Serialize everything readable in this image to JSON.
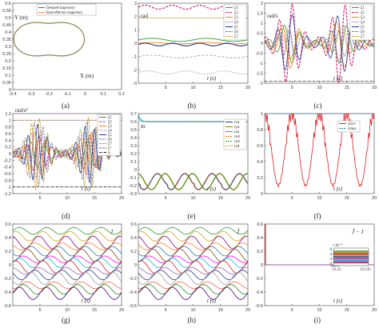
{
  "panels": [
    {
      "id": "a",
      "caption": "(a)",
      "type": "line",
      "xticks": [
        "-0.4",
        "-0.3",
        "-0.2",
        "-0.1",
        "0",
        "0.1",
        "0.2"
      ],
      "yticks": [
        "0.6",
        "0.55",
        "0.5",
        "0.45",
        "0.4",
        "0.35",
        "0.3",
        "0.25",
        "0.2",
        "0.15",
        "0.1",
        "0.05",
        "0"
      ],
      "xlabel": "X (m)",
      "ylabel": "Y (m)",
      "legend": [
        "Desired trajectory",
        "End-effector trajectory"
      ],
      "colors": [
        "#2e8b57",
        "#f08a4b"
      ]
    },
    {
      "id": "b",
      "caption": "(b)",
      "unit": "rad",
      "xlabel": "t (s)",
      "xticks": [
        "5",
        "10",
        "15",
        "20"
      ],
      "yticks": [
        "3",
        "2",
        "1",
        "0",
        "-1",
        "-2",
        "-3"
      ],
      "legend": [
        "ξ1",
        "ξ2",
        "ξ3",
        "ξ4",
        "ξ5",
        "ξ6",
        "ξ7"
      ]
    },
    {
      "id": "c",
      "caption": "(c)",
      "unit": "rad/s",
      "xlabel": "t (s)",
      "xticks": [
        "5",
        "10",
        "15",
        "20"
      ],
      "yticks": [
        "2",
        "1.5",
        "1",
        "0.5",
        "0",
        "-0.5",
        "-1",
        "-1.5",
        "-2"
      ],
      "legend": [
        "ξ1",
        "ξ2",
        "ξ3",
        "ξ4",
        "ξ5",
        "ξ6",
        "ξ7"
      ]
    },
    {
      "id": "d",
      "caption": "(d)",
      "unit": "rad/s²",
      "xlabel": "t (s)",
      "xticks": [
        "5",
        "10",
        "15",
        "20"
      ],
      "yticks": [
        "1.2",
        "1",
        "0.8",
        "0.6",
        "0.4",
        "0.2",
        "0",
        "-0.2",
        "-0.4",
        "-0.6",
        "-0.8",
        "-1",
        "-1.2"
      ],
      "legend": [
        "ξ1",
        "ξ2",
        "ξ3",
        "ξ4",
        "ξ5",
        "ξ6",
        "ξ7",
        "ξ+",
        "ξ-"
      ]
    },
    {
      "id": "e",
      "caption": "(e)",
      "unit": "m",
      "xlabel": "t (s)",
      "xticks": [
        "5",
        "10",
        "15",
        "20"
      ],
      "yticks": [
        "0.7",
        "0.6",
        "0.5",
        "0.4",
        "0.3",
        "0.2",
        "0.1",
        "0",
        "-0.1",
        "-0.2",
        "-0.3"
      ],
      "legend": [
        "rxa",
        "rya",
        "rza",
        "rxd",
        "ryd",
        "rzd"
      ]
    },
    {
      "id": "f",
      "caption": "(f)",
      "xlabel": "t (s)",
      "xticks": [
        "5",
        "10",
        "15",
        "20"
      ],
      "yticks": [
        "1",
        "0.8",
        "0.6",
        "0.4",
        "0.2",
        "0"
      ],
      "legend": [
        "||ε||∞",
        "εmax"
      ]
    },
    {
      "id": "g",
      "caption": "(g)",
      "xlabel": "t (s)",
      "tag": "J",
      "xticks": [
        "5",
        "10",
        "15",
        "20"
      ],
      "yticks": [
        "0.6",
        "0.4",
        "0.2",
        "0",
        "-0.2",
        "-0.4",
        "-0.6"
      ]
    },
    {
      "id": "h",
      "caption": "(h)",
      "xlabel": "t (s)",
      "tag": "Ĵ",
      "xticks": [
        "5",
        "10",
        "15",
        "20"
      ],
      "yticks": [
        "0.6",
        "0.4",
        "0.2",
        "0",
        "-0.2",
        "-0.4",
        "-0.6"
      ]
    },
    {
      "id": "i",
      "caption": "(i)",
      "xlabel": "t (s)",
      "tag": "Ĵ − J",
      "xticks": [
        "5",
        "10",
        "15",
        "20"
      ],
      "yticks": [
        "0.6",
        "0.4",
        "0.2",
        "0",
        "-0.2",
        "-0.4",
        "-0.6"
      ],
      "inset": {
        "exp": "×10⁻⁵",
        "yticks": [
          "6",
          "4",
          "2",
          "0"
        ],
        "xticks": [
          "13.51",
          "13.515"
        ]
      }
    }
  ],
  "chart_data": [
    {
      "type": "line",
      "panel": "a",
      "title": "",
      "xlabel": "X (m)",
      "ylabel": "Y (m)",
      "xlim": [
        -0.4,
        0.2
      ],
      "ylim": [
        0,
        0.6
      ],
      "series": [
        {
          "name": "Desired trajectory",
          "shape": "two-lobe closed curve centered near (-0.2, 0.35)"
        },
        {
          "name": "End-effector trajectory",
          "overlaps": "Desired trajectory"
        }
      ]
    },
    {
      "type": "line",
      "panel": "b",
      "xlabel": "t (s)",
      "ylabel": "rad",
      "xlim": [
        0,
        20
      ],
      "ylim": [
        -3,
        3
      ],
      "series": [
        {
          "name": "ξ1",
          "values_approx": [
            0.2,
            0.2,
            0.35,
            0.2,
            0.2,
            0.35,
            0.2
          ]
        },
        {
          "name": "ξ2",
          "values_approx": [
            2.7,
            2.5,
            2.9,
            2.5,
            2.7,
            2.9,
            2.6
          ]
        },
        {
          "name": "ξ3",
          "values_approx": [
            0.0,
            0.1,
            -0.1,
            0.1,
            0.0,
            -0.1,
            0.0
          ]
        },
        {
          "name": "ξ4",
          "values_approx": [
            -2.2,
            -2.3,
            -2.1,
            -2.3,
            -2.2,
            -2.1,
            -2.3
          ]
        },
        {
          "name": "ξ5",
          "values_approx": [
            -0.1,
            -0.2,
            0.0,
            -0.2,
            -0.1,
            0.0,
            -0.2
          ]
        },
        {
          "name": "ξ6",
          "values_approx": [
            -1.0,
            -1.1,
            -0.9,
            -1.1,
            -1.0,
            -0.9,
            -1.1
          ]
        },
        {
          "name": "ξ7",
          "values_approx": [
            1.9,
            1.9,
            1.9,
            1.9,
            1.9,
            1.9,
            1.9
          ]
        }
      ]
    },
    {
      "type": "line",
      "panel": "c",
      "xlabel": "t (s)",
      "ylabel": "rad/s",
      "xlim": [
        0,
        20
      ],
      "ylim": [
        -2,
        2
      ],
      "note": "oscillating joint velocities with bursts near t≈4 and t≈14; dash-dot bound at -1.9"
    },
    {
      "type": "line",
      "panel": "d",
      "xlabel": "t (s)",
      "ylabel": "rad/s²",
      "xlim": [
        0,
        20
      ],
      "ylim": [
        -1.2,
        1.2
      ],
      "bounds": {
        "ξ+": 1,
        "ξ-": -1
      }
    },
    {
      "type": "line",
      "panel": "e",
      "xlabel": "t (s)",
      "ylabel": "m",
      "xlim": [
        0,
        20
      ],
      "ylim": [
        -0.3,
        0.7
      ],
      "series": [
        {
          "name": "rza / rzd",
          "values_approx": [
            0.68,
            0.6,
            0.6,
            0.6,
            0.6
          ]
        },
        {
          "name": "rxa / rxd",
          "range": [
            -0.25,
            -0.05
          ]
        },
        {
          "name": "rya / ryd",
          "range": [
            -0.25,
            -0.05
          ]
        }
      ]
    },
    {
      "type": "line",
      "panel": "f",
      "xlabel": "t (s)",
      "xlim": [
        0,
        20
      ],
      "ylim": [
        0,
        1
      ],
      "series": [
        {
          "name": "||ε||∞",
          "shape": "oscillates between about 0.1 and 1.0"
        },
        {
          "name": "εmax",
          "values": [
            1,
            1
          ]
        }
      ]
    },
    {
      "type": "line",
      "panel": "g",
      "xlabel": "t (s)",
      "xlim": [
        0,
        20
      ],
      "ylim": [
        -0.6,
        0.6
      ],
      "note": "Jacobian entries J over time"
    },
    {
      "type": "line",
      "panel": "h",
      "xlabel": "t (s)",
      "xlim": [
        0,
        20
      ],
      "ylim": [
        -0.6,
        0.6
      ],
      "note": "estimated Jacobian entries Ĵ over time"
    },
    {
      "type": "line",
      "panel": "i",
      "xlabel": "t (s)",
      "xlim": [
        0,
        20
      ],
      "ylim": [
        -0.6,
        0.6
      ],
      "note": "error Ĵ−J near 0 after initial spike at t≈0"
    }
  ]
}
